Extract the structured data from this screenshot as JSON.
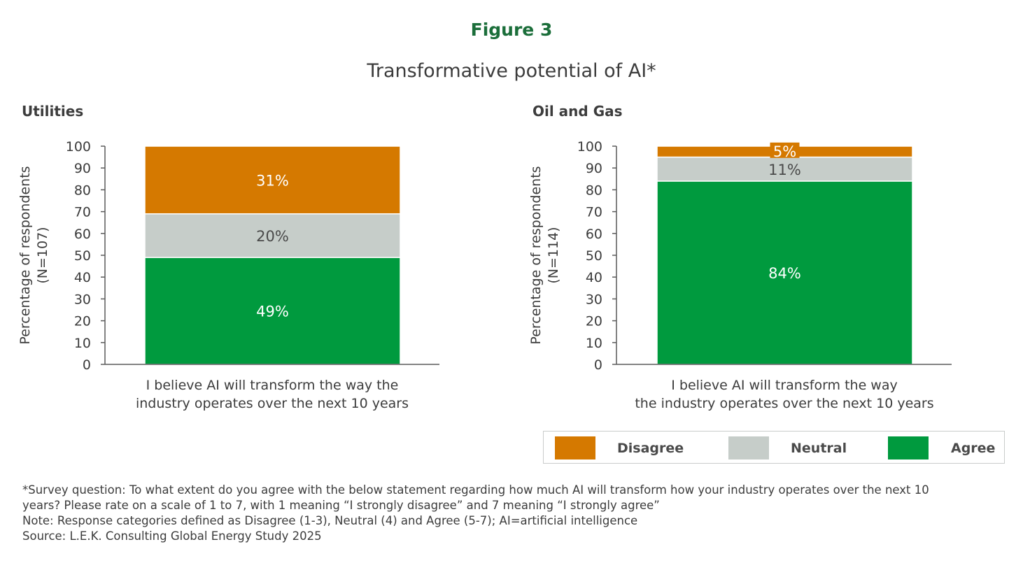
{
  "figure_label": "Figure 3",
  "title": "Transformative potential of AI*",
  "colors": {
    "Disagree": "#d57900",
    "Neutral": "#c6cdc9",
    "Agree": "#009a3e",
    "axis": "#5a5a5a",
    "figure_label": "#1b6e3a"
  },
  "legend": [
    {
      "label": "Disagree",
      "color": "#d57900"
    },
    {
      "label": "Neutral",
      "color": "#c6cdc9"
    },
    {
      "label": "Agree",
      "color": "#009a3e"
    }
  ],
  "chart_data": [
    {
      "type": "bar",
      "stacked": true,
      "title": "Utilities",
      "ylabel_lines": [
        "Percentage of respondents",
        "(N=107)"
      ],
      "xlabel_lines": [
        "I believe AI will transform the way the",
        "industry operates over the next 10 years"
      ],
      "ylim": [
        0,
        100
      ],
      "yticks": [
        0,
        10,
        20,
        30,
        40,
        50,
        60,
        70,
        80,
        90,
        100
      ],
      "series": [
        {
          "name": "Agree",
          "value": 49,
          "label": "49%"
        },
        {
          "name": "Neutral",
          "value": 20,
          "label": "20%"
        },
        {
          "name": "Disagree",
          "value": 31,
          "label": "31%"
        }
      ]
    },
    {
      "type": "bar",
      "stacked": true,
      "title": "Oil and Gas",
      "ylabel_lines": [
        "Percentage of respondents",
        "(N=114)"
      ],
      "xlabel_lines": [
        "I believe AI will transform the way",
        "the industry operates over the next 10 years"
      ],
      "ylim": [
        0,
        100
      ],
      "yticks": [
        0,
        10,
        20,
        30,
        40,
        50,
        60,
        70,
        80,
        90,
        100
      ],
      "series": [
        {
          "name": "Agree",
          "value": 84,
          "label": "84%"
        },
        {
          "name": "Neutral",
          "value": 11,
          "label": "11%"
        },
        {
          "name": "Disagree",
          "value": 5,
          "label": "5%"
        }
      ]
    }
  ],
  "notes": [
    "*Survey question: To what extent do you agree with the below statement regarding how much AI will transform how your industry operates over the next 10",
    "years? Please rate on a scale of 1 to 7, with 1 meaning “I strongly disagree” and 7 meaning “I strongly agree”",
    "Note: Response categories defined as Disagree (1-3), Neutral (4) and Agree (5-7); AI=artificial intelligence",
    "Source: L.E.K. Consulting Global Energy Study 2025"
  ]
}
